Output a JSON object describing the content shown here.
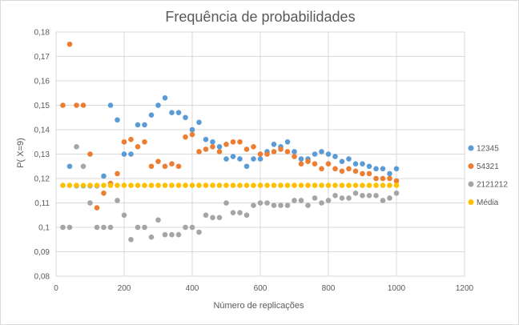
{
  "chart_data": {
    "type": "scatter",
    "title": "Frequência de probabilidades",
    "xlabel": "Número de replicações",
    "ylabel": "P( X=9)",
    "xlim": [
      0,
      1200
    ],
    "ylim": [
      0.08,
      0.18
    ],
    "x_ticks": [
      "0",
      "200",
      "400",
      "600",
      "800",
      "1000",
      "1200"
    ],
    "y_ticks": [
      "0,08",
      "0,09",
      "0,1",
      "0,11",
      "0,12",
      "0,13",
      "0,14",
      "0,15",
      "0,16",
      "0,17",
      "0,18"
    ],
    "grid": true,
    "legend_position": "right",
    "x": [
      20,
      40,
      60,
      80,
      100,
      120,
      140,
      160,
      180,
      200,
      220,
      240,
      260,
      280,
      300,
      320,
      340,
      360,
      380,
      400,
      420,
      440,
      460,
      480,
      500,
      520,
      540,
      560,
      580,
      600,
      620,
      640,
      660,
      680,
      700,
      720,
      740,
      760,
      780,
      800,
      820,
      840,
      860,
      880,
      900,
      920,
      940,
      960,
      980,
      1000
    ],
    "series": [
      {
        "name": "12345",
        "color": "#5b9bd5",
        "values": [
          null,
          0.125,
          0.117,
          0.117,
          0.117,
          0.117,
          0.121,
          0.15,
          0.144,
          0.13,
          0.13,
          0.142,
          0.142,
          0.146,
          0.15,
          0.153,
          0.147,
          0.147,
          0.145,
          0.14,
          0.143,
          0.136,
          0.135,
          0.133,
          0.128,
          0.129,
          0.128,
          0.125,
          0.128,
          0.128,
          0.131,
          0.134,
          0.133,
          0.135,
          0.131,
          0.128,
          0.128,
          0.13,
          0.131,
          0.13,
          0.129,
          0.127,
          0.128,
          0.126,
          0.126,
          0.125,
          0.124,
          0.124,
          0.122,
          0.124
        ]
      },
      {
        "name": "54321",
        "color": "#ed7d31",
        "values": [
          0.15,
          0.175,
          0.15,
          0.15,
          0.13,
          0.108,
          0.114,
          0.118,
          0.122,
          0.135,
          0.136,
          0.133,
          0.135,
          0.125,
          0.127,
          0.125,
          0.126,
          0.125,
          0.137,
          0.138,
          0.131,
          0.132,
          0.133,
          0.131,
          0.134,
          0.135,
          0.135,
          0.132,
          0.133,
          0.13,
          0.13,
          0.131,
          0.132,
          0.131,
          0.129,
          0.126,
          0.127,
          0.126,
          0.124,
          0.126,
          0.124,
          0.123,
          0.124,
          0.123,
          0.122,
          0.122,
          0.12,
          0.12,
          0.12,
          0.119
        ]
      },
      {
        "name": "2121212",
        "color": "#a5a5a5",
        "values": [
          0.1,
          0.1,
          0.133,
          0.125,
          0.11,
          0.1,
          0.1,
          0.1,
          0.111,
          0.105,
          0.095,
          0.1,
          0.1,
          0.096,
          0.103,
          0.097,
          0.097,
          0.097,
          0.1,
          0.1,
          0.098,
          0.105,
          0.104,
          0.104,
          0.11,
          0.106,
          0.106,
          0.105,
          0.109,
          0.11,
          0.11,
          0.109,
          0.109,
          0.109,
          0.111,
          0.111,
          0.109,
          0.112,
          0.11,
          0.111,
          0.113,
          0.112,
          0.112,
          0.114,
          0.113,
          0.113,
          0.113,
          0.111,
          0.112,
          0.114
        ]
      },
      {
        "name": "Média",
        "color": "#ffc000",
        "values": [
          0.1172,
          0.1172,
          0.1172,
          0.1172,
          0.1172,
          0.1172,
          0.1172,
          0.1172,
          0.1172,
          0.1172,
          0.1172,
          0.1172,
          0.1172,
          0.1172,
          0.1172,
          0.1172,
          0.1172,
          0.1172,
          0.1172,
          0.1172,
          0.1172,
          0.1172,
          0.1172,
          0.1172,
          0.1172,
          0.1172,
          0.1172,
          0.1172,
          0.1172,
          0.1172,
          0.1172,
          0.1172,
          0.1172,
          0.1172,
          0.1172,
          0.1172,
          0.1172,
          0.1172,
          0.1172,
          0.1172,
          0.1172,
          0.1172,
          0.1172,
          0.1172,
          0.1172,
          0.1172,
          0.1172,
          0.1172,
          0.1172,
          0.1172
        ]
      }
    ]
  }
}
